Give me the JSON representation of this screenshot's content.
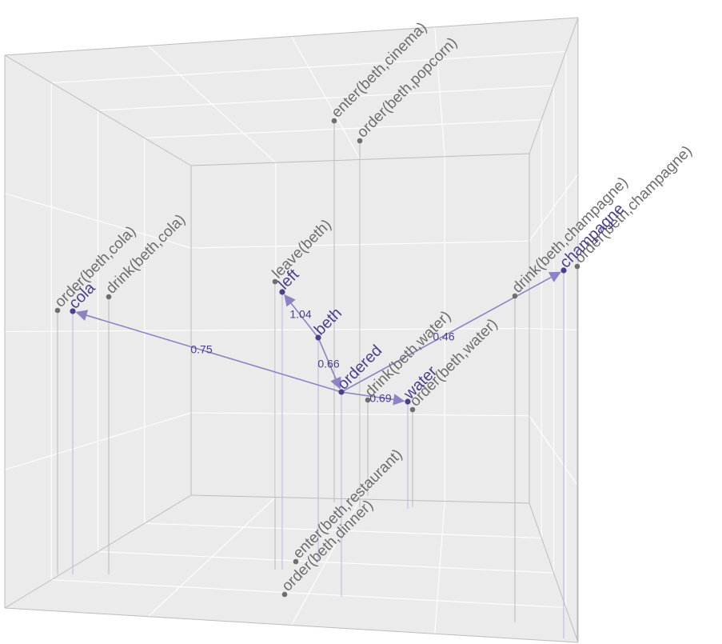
{
  "colors": {
    "panel": "#ebebeb",
    "grid": "#ffffff",
    "frame": "#bdbdbd",
    "drop_line_fact": "#b9b9b9",
    "drop_line_concept": "#b9b4d8",
    "fact_point": "#6e6e6e",
    "fact_text": "#6e6e6e",
    "concept": "#4b3f8c",
    "edge": "#8b84c4"
  },
  "facts": [
    {
      "id": "enter-beth-cinema",
      "label": "enter(beth,cinema)"
    },
    {
      "id": "order-beth-popcorn",
      "label": "order(beth,popcorn)"
    },
    {
      "id": "order-beth-cola",
      "label": "order(beth,cola)"
    },
    {
      "id": "drink-beth-cola",
      "label": "drink(beth,cola)"
    },
    {
      "id": "leave-beth",
      "label": "leave(beth)"
    },
    {
      "id": "drink-beth-champagne",
      "label": "drink(beth,champagne)"
    },
    {
      "id": "order-beth-champagne",
      "label": "order(beth,champagne)"
    },
    {
      "id": "drink-beth-water",
      "label": "drink(beth,water)"
    },
    {
      "id": "order-beth-water",
      "label": "order(beth,water)"
    },
    {
      "id": "enter-beth-restaurant",
      "label": "enter(beth,restaurant)"
    },
    {
      "id": "order-beth-dinner",
      "label": "order(beth,dinner)"
    }
  ],
  "concepts": [
    {
      "id": "cola",
      "label": "cola"
    },
    {
      "id": "left",
      "label": "left"
    },
    {
      "id": "beth",
      "label": "beth"
    },
    {
      "id": "ordered",
      "label": "ordered"
    },
    {
      "id": "water",
      "label": "water"
    },
    {
      "id": "champagne",
      "label": "champagne"
    }
  ],
  "edges": [
    {
      "from": "ordered",
      "to": "cola",
      "weight": "0.75"
    },
    {
      "from": "beth",
      "to": "left",
      "weight": "1.04"
    },
    {
      "from": "beth",
      "to": "ordered",
      "weight": "0.66"
    },
    {
      "from": "ordered",
      "to": "water",
      "weight": "0.69"
    },
    {
      "from": "ordered",
      "to": "champagne",
      "weight": "0.46"
    }
  ]
}
